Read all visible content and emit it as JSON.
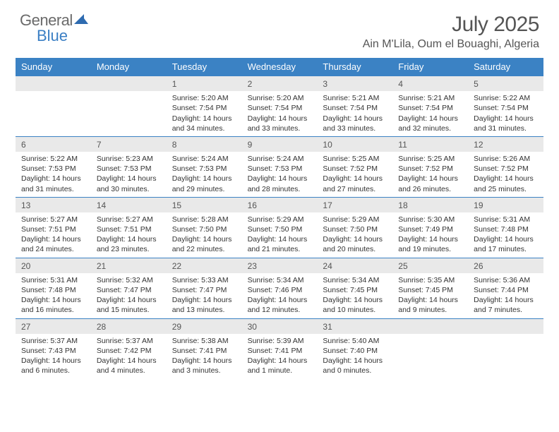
{
  "logo": {
    "text1": "General",
    "text2": "Blue"
  },
  "title": "July 2025",
  "subtitle": "Ain M'Lila, Oum el Bouaghi, Algeria",
  "colors": {
    "header_bg": "#3b82c4",
    "header_text": "#ffffff",
    "daynum_bg": "#e9e9e9",
    "border": "#3b82c4",
    "logo_gray": "#6a6a6a",
    "logo_blue": "#3b7fc4"
  },
  "day_names": [
    "Sunday",
    "Monday",
    "Tuesday",
    "Wednesday",
    "Thursday",
    "Friday",
    "Saturday"
  ],
  "weeks": [
    [
      {
        "n": "",
        "sr": "",
        "ss": "",
        "dl": ""
      },
      {
        "n": "",
        "sr": "",
        "ss": "",
        "dl": ""
      },
      {
        "n": "1",
        "sr": "Sunrise: 5:20 AM",
        "ss": "Sunset: 7:54 PM",
        "dl": "Daylight: 14 hours and 34 minutes."
      },
      {
        "n": "2",
        "sr": "Sunrise: 5:20 AM",
        "ss": "Sunset: 7:54 PM",
        "dl": "Daylight: 14 hours and 33 minutes."
      },
      {
        "n": "3",
        "sr": "Sunrise: 5:21 AM",
        "ss": "Sunset: 7:54 PM",
        "dl": "Daylight: 14 hours and 33 minutes."
      },
      {
        "n": "4",
        "sr": "Sunrise: 5:21 AM",
        "ss": "Sunset: 7:54 PM",
        "dl": "Daylight: 14 hours and 32 minutes."
      },
      {
        "n": "5",
        "sr": "Sunrise: 5:22 AM",
        "ss": "Sunset: 7:54 PM",
        "dl": "Daylight: 14 hours and 31 minutes."
      }
    ],
    [
      {
        "n": "6",
        "sr": "Sunrise: 5:22 AM",
        "ss": "Sunset: 7:53 PM",
        "dl": "Daylight: 14 hours and 31 minutes."
      },
      {
        "n": "7",
        "sr": "Sunrise: 5:23 AM",
        "ss": "Sunset: 7:53 PM",
        "dl": "Daylight: 14 hours and 30 minutes."
      },
      {
        "n": "8",
        "sr": "Sunrise: 5:24 AM",
        "ss": "Sunset: 7:53 PM",
        "dl": "Daylight: 14 hours and 29 minutes."
      },
      {
        "n": "9",
        "sr": "Sunrise: 5:24 AM",
        "ss": "Sunset: 7:53 PM",
        "dl": "Daylight: 14 hours and 28 minutes."
      },
      {
        "n": "10",
        "sr": "Sunrise: 5:25 AM",
        "ss": "Sunset: 7:52 PM",
        "dl": "Daylight: 14 hours and 27 minutes."
      },
      {
        "n": "11",
        "sr": "Sunrise: 5:25 AM",
        "ss": "Sunset: 7:52 PM",
        "dl": "Daylight: 14 hours and 26 minutes."
      },
      {
        "n": "12",
        "sr": "Sunrise: 5:26 AM",
        "ss": "Sunset: 7:52 PM",
        "dl": "Daylight: 14 hours and 25 minutes."
      }
    ],
    [
      {
        "n": "13",
        "sr": "Sunrise: 5:27 AM",
        "ss": "Sunset: 7:51 PM",
        "dl": "Daylight: 14 hours and 24 minutes."
      },
      {
        "n": "14",
        "sr": "Sunrise: 5:27 AM",
        "ss": "Sunset: 7:51 PM",
        "dl": "Daylight: 14 hours and 23 minutes."
      },
      {
        "n": "15",
        "sr": "Sunrise: 5:28 AM",
        "ss": "Sunset: 7:50 PM",
        "dl": "Daylight: 14 hours and 22 minutes."
      },
      {
        "n": "16",
        "sr": "Sunrise: 5:29 AM",
        "ss": "Sunset: 7:50 PM",
        "dl": "Daylight: 14 hours and 21 minutes."
      },
      {
        "n": "17",
        "sr": "Sunrise: 5:29 AM",
        "ss": "Sunset: 7:50 PM",
        "dl": "Daylight: 14 hours and 20 minutes."
      },
      {
        "n": "18",
        "sr": "Sunrise: 5:30 AM",
        "ss": "Sunset: 7:49 PM",
        "dl": "Daylight: 14 hours and 19 minutes."
      },
      {
        "n": "19",
        "sr": "Sunrise: 5:31 AM",
        "ss": "Sunset: 7:48 PM",
        "dl": "Daylight: 14 hours and 17 minutes."
      }
    ],
    [
      {
        "n": "20",
        "sr": "Sunrise: 5:31 AM",
        "ss": "Sunset: 7:48 PM",
        "dl": "Daylight: 14 hours and 16 minutes."
      },
      {
        "n": "21",
        "sr": "Sunrise: 5:32 AM",
        "ss": "Sunset: 7:47 PM",
        "dl": "Daylight: 14 hours and 15 minutes."
      },
      {
        "n": "22",
        "sr": "Sunrise: 5:33 AM",
        "ss": "Sunset: 7:47 PM",
        "dl": "Daylight: 14 hours and 13 minutes."
      },
      {
        "n": "23",
        "sr": "Sunrise: 5:34 AM",
        "ss": "Sunset: 7:46 PM",
        "dl": "Daylight: 14 hours and 12 minutes."
      },
      {
        "n": "24",
        "sr": "Sunrise: 5:34 AM",
        "ss": "Sunset: 7:45 PM",
        "dl": "Daylight: 14 hours and 10 minutes."
      },
      {
        "n": "25",
        "sr": "Sunrise: 5:35 AM",
        "ss": "Sunset: 7:45 PM",
        "dl": "Daylight: 14 hours and 9 minutes."
      },
      {
        "n": "26",
        "sr": "Sunrise: 5:36 AM",
        "ss": "Sunset: 7:44 PM",
        "dl": "Daylight: 14 hours and 7 minutes."
      }
    ],
    [
      {
        "n": "27",
        "sr": "Sunrise: 5:37 AM",
        "ss": "Sunset: 7:43 PM",
        "dl": "Daylight: 14 hours and 6 minutes."
      },
      {
        "n": "28",
        "sr": "Sunrise: 5:37 AM",
        "ss": "Sunset: 7:42 PM",
        "dl": "Daylight: 14 hours and 4 minutes."
      },
      {
        "n": "29",
        "sr": "Sunrise: 5:38 AM",
        "ss": "Sunset: 7:41 PM",
        "dl": "Daylight: 14 hours and 3 minutes."
      },
      {
        "n": "30",
        "sr": "Sunrise: 5:39 AM",
        "ss": "Sunset: 7:41 PM",
        "dl": "Daylight: 14 hours and 1 minute."
      },
      {
        "n": "31",
        "sr": "Sunrise: 5:40 AM",
        "ss": "Sunset: 7:40 PM",
        "dl": "Daylight: 14 hours and 0 minutes."
      },
      {
        "n": "",
        "sr": "",
        "ss": "",
        "dl": ""
      },
      {
        "n": "",
        "sr": "",
        "ss": "",
        "dl": ""
      }
    ]
  ]
}
